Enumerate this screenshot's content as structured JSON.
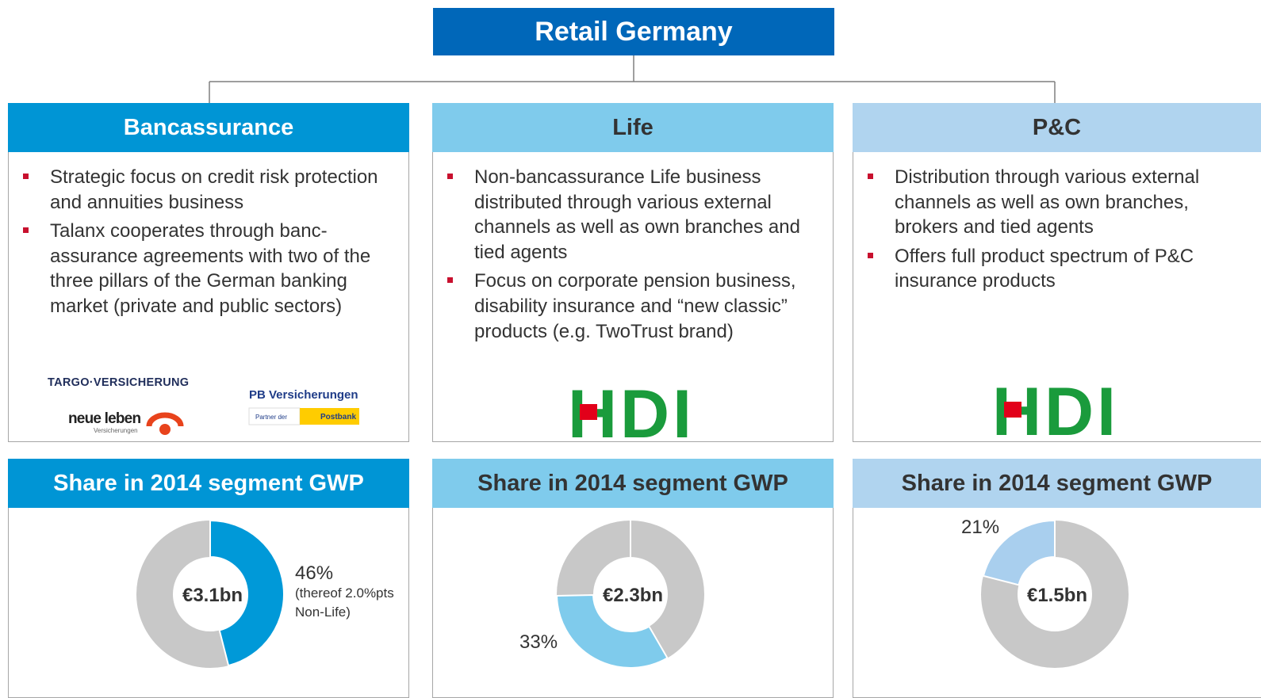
{
  "title": "Retail Germany",
  "columns": [
    {
      "heading": "Bancassurance",
      "bullets": [
        "Strategic focus on credit risk protection and annuities business",
        "Talanx cooperates through banc-assurance agreements with two of the three pillars of the German banking market (private and public sectors)"
      ],
      "logos": {
        "targo": "TARGO·VERSICHERUNG",
        "neue_leben": "neue leben",
        "neue_leben_sub": "Versicherungen",
        "pb": "PB Versicherungen",
        "pb_partner": "Partner der",
        "pb_postbank": "Postbank"
      },
      "share_heading": "Share in 2014 segment GWP",
      "total": "€3.1bn",
      "share": {
        "value": 46,
        "label": "46%"
      },
      "note": "(thereof 2.0%pts Non-Life)",
      "color": "#0099d8"
    },
    {
      "heading": "Life",
      "bullets": [
        "Non-bancassurance Life business distributed through various external channels as well as own branches and tied agents",
        "Focus on corporate pension business, disability insurance  and “new classic” products (e.g. TwoTrust brand)"
      ],
      "logo": "HDI",
      "share_heading": "Share in 2014 segment GWP",
      "total": "€2.3bn",
      "share": {
        "value": 33,
        "label": "33%"
      },
      "color": "#7fcbec"
    },
    {
      "heading": "P&C",
      "bullets": [
        "Distribution through various external channels as well as own branches, brokers and tied agents",
        "Offers full product spectrum of P&C insurance products"
      ],
      "logo": "HDI",
      "share_heading": "Share in 2014 segment GWP",
      "total": "€1.5bn",
      "share": {
        "value": 21,
        "label": "21%"
      },
      "color": "#a9cfee"
    }
  ]
}
